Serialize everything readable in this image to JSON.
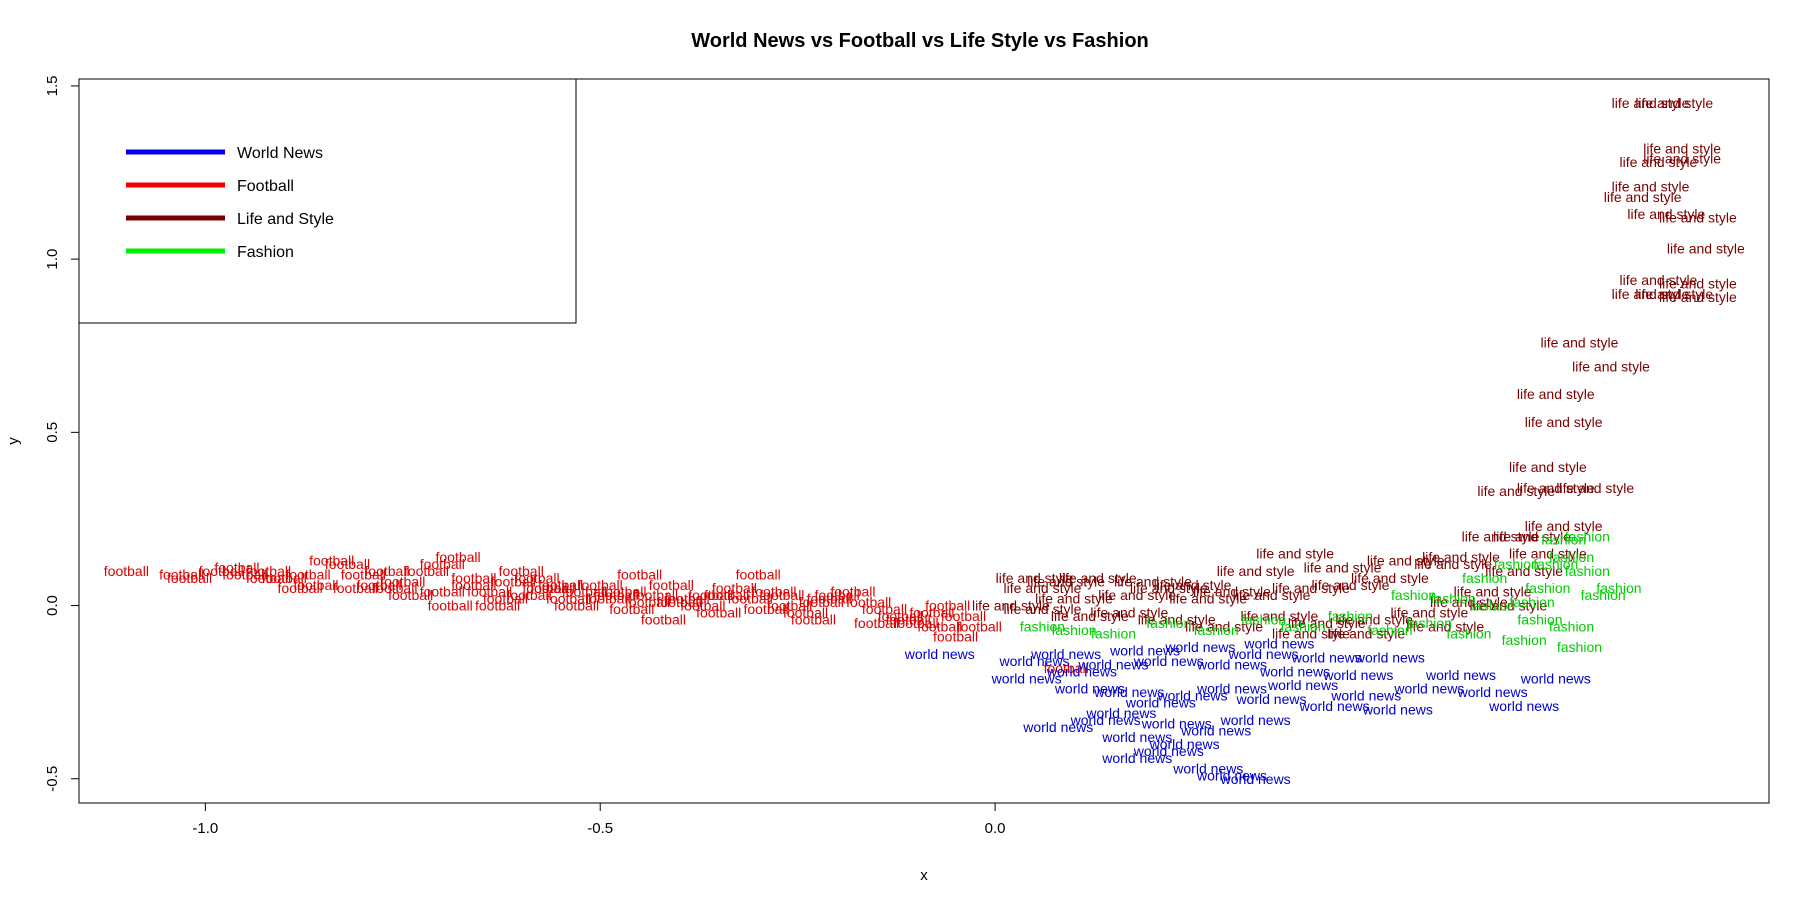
{
  "chart_data": {
    "type": "scatter",
    "title": "World News vs Football vs Life Style vs Fashion",
    "xlabel": "x",
    "ylabel": "y",
    "xlim": [
      -1.16,
      0.98
    ],
    "ylim": [
      -0.57,
      1.52
    ],
    "x_ticks": [
      -1.0,
      -0.5,
      0.0
    ],
    "x_tick_labels": [
      "-1.0",
      "-0.5",
      "0.0"
    ],
    "y_ticks": [
      -0.5,
      0.0,
      0.5,
      1.0,
      1.5
    ],
    "y_tick_labels": [
      "-0.5",
      "0.0",
      "0.5",
      "1.0",
      "1.5"
    ],
    "legend": {
      "placement": "top-left",
      "entries": [
        {
          "label": "World News",
          "color": "#0000ee"
        },
        {
          "label": "Football",
          "color": "#ee0000"
        },
        {
          "label": "Life and Style",
          "color": "#7a0000"
        },
        {
          "label": "Fashion",
          "color": "#00ee00"
        }
      ]
    },
    "series": [
      {
        "label": "football",
        "color": "#dd0000",
        "points": [
          [
            -1.1,
            0.1
          ],
          [
            -1.03,
            0.09
          ],
          [
            -1.02,
            0.08
          ],
          [
            -0.98,
            0.1
          ],
          [
            -0.96,
            0.11
          ],
          [
            -0.92,
            0.1
          ],
          [
            -0.9,
            0.08
          ],
          [
            -0.87,
            0.09
          ],
          [
            -0.84,
            0.13
          ],
          [
            -0.82,
            0.12
          ],
          [
            -0.8,
            0.09
          ],
          [
            -0.78,
            0.06
          ],
          [
            -0.76,
            0.05
          ],
          [
            -0.74,
            0.03
          ],
          [
            -0.72,
            0.1
          ],
          [
            -0.7,
            0.12
          ],
          [
            -0.68,
            0.14
          ],
          [
            -0.66,
            0.06
          ],
          [
            -0.64,
            0.04
          ],
          [
            -0.62,
            0.02
          ],
          [
            -0.61,
            0.07
          ],
          [
            -0.6,
            0.1
          ],
          [
            -0.58,
            0.08
          ],
          [
            -0.56,
            0.05
          ],
          [
            -0.54,
            0.02
          ],
          [
            -0.52,
            0.04
          ],
          [
            -0.5,
            0.06
          ],
          [
            -0.48,
            0.03
          ],
          [
            -0.46,
            -0.01
          ],
          [
            -0.45,
            0.09
          ],
          [
            -0.43,
            0.03
          ],
          [
            -0.41,
            0.06
          ],
          [
            -0.39,
            0.02
          ],
          [
            -0.37,
            0.0
          ],
          [
            -0.35,
            -0.02
          ],
          [
            -0.33,
            0.05
          ],
          [
            -0.31,
            0.02
          ],
          [
            -0.3,
            0.09
          ],
          [
            -0.28,
            0.04
          ],
          [
            -0.26,
            0.0
          ],
          [
            -0.24,
            -0.02
          ],
          [
            -0.22,
            0.01
          ],
          [
            -0.2,
            0.03
          ],
          [
            -0.18,
            0.04
          ],
          [
            -0.16,
            0.01
          ],
          [
            -0.14,
            -0.01
          ],
          [
            -0.12,
            -0.03
          ],
          [
            -0.1,
            -0.05
          ],
          [
            -0.08,
            -0.02
          ],
          [
            -0.06,
            0.0
          ],
          [
            -0.05,
            -0.09
          ],
          [
            -0.04,
            -0.03
          ],
          [
            -0.02,
            -0.06
          ],
          [
            -0.92,
            0.08
          ],
          [
            -0.86,
            0.06
          ],
          [
            -0.77,
            0.1
          ],
          [
            -0.69,
            0.0
          ],
          [
            -0.66,
            0.08
          ],
          [
            -0.57,
            0.05
          ],
          [
            -0.53,
            0.0
          ],
          [
            -0.49,
            0.02
          ],
          [
            -0.44,
            0.01
          ],
          [
            -0.42,
            -0.04
          ],
          [
            -0.34,
            0.03
          ],
          [
            -0.29,
            -0.01
          ],
          [
            -0.21,
            0.02
          ],
          [
            -0.95,
            0.09
          ],
          [
            -0.88,
            0.05
          ],
          [
            -0.81,
            0.05
          ],
          [
            -0.75,
            0.07
          ],
          [
            -0.7,
            0.04
          ],
          [
            -0.63,
            0.0
          ],
          [
            -0.59,
            0.03
          ],
          [
            -0.55,
            0.06
          ],
          [
            -0.47,
            0.04
          ],
          [
            -0.4,
            0.01
          ],
          [
            -0.36,
            0.03
          ],
          [
            -0.27,
            0.03
          ],
          [
            -0.23,
            -0.04
          ],
          [
            -0.15,
            -0.05
          ],
          [
            -0.11,
            -0.04
          ],
          [
            -0.07,
            -0.06
          ],
          [
            0.09,
            -0.18
          ]
        ]
      },
      {
        "label": "life and style",
        "color": "#7a0000",
        "points": [
          [
            0.83,
            1.45
          ],
          [
            0.86,
            1.45
          ],
          [
            0.87,
            1.32
          ],
          [
            0.84,
            1.28
          ],
          [
            0.87,
            1.29
          ],
          [
            0.83,
            1.21
          ],
          [
            0.82,
            1.18
          ],
          [
            0.85,
            1.13
          ],
          [
            0.89,
            1.12
          ],
          [
            0.9,
            1.03
          ],
          [
            0.84,
            0.94
          ],
          [
            0.89,
            0.93
          ],
          [
            0.83,
            0.9
          ],
          [
            0.86,
            0.9
          ],
          [
            0.89,
            0.89
          ],
          [
            0.74,
            0.76
          ],
          [
            0.78,
            0.69
          ],
          [
            0.71,
            0.61
          ],
          [
            0.72,
            0.53
          ],
          [
            0.7,
            0.4
          ],
          [
            0.76,
            0.34
          ],
          [
            0.66,
            0.33
          ],
          [
            0.71,
            0.34
          ],
          [
            0.68,
            0.2
          ],
          [
            0.72,
            0.23
          ],
          [
            0.64,
            0.2
          ],
          [
            0.59,
            0.14
          ],
          [
            0.7,
            0.15
          ],
          [
            0.05,
            0.08
          ],
          [
            0.09,
            0.07
          ],
          [
            0.13,
            0.08
          ],
          [
            0.2,
            0.07
          ],
          [
            0.25,
            0.06
          ],
          [
            0.3,
            0.04
          ],
          [
            0.33,
            0.1
          ],
          [
            0.06,
            0.05
          ],
          [
            0.1,
            0.02
          ],
          [
            0.18,
            0.03
          ],
          [
            0.22,
            0.05
          ],
          [
            0.27,
            0.02
          ],
          [
            0.35,
            0.03
          ],
          [
            0.4,
            0.05
          ],
          [
            0.45,
            0.06
          ],
          [
            0.5,
            0.08
          ],
          [
            0.02,
            0.0
          ],
          [
            0.06,
            -0.01
          ],
          [
            0.12,
            -0.03
          ],
          [
            0.17,
            -0.02
          ],
          [
            0.23,
            -0.04
          ],
          [
            0.29,
            -0.06
          ],
          [
            0.36,
            -0.03
          ],
          [
            0.42,
            -0.05
          ],
          [
            0.48,
            -0.04
          ],
          [
            0.55,
            -0.02
          ],
          [
            0.6,
            0.01
          ],
          [
            0.63,
            0.04
          ],
          [
            0.67,
            0.1
          ],
          [
            0.58,
            0.12
          ],
          [
            0.52,
            0.13
          ],
          [
            0.38,
            0.15
          ],
          [
            0.44,
            0.11
          ],
          [
            0.65,
            0.0
          ],
          [
            0.57,
            -0.06
          ],
          [
            0.47,
            -0.08
          ],
          [
            0.4,
            -0.08
          ]
        ]
      },
      {
        "label": "fashion",
        "color": "#00cc00",
        "points": [
          [
            0.75,
            0.2
          ],
          [
            0.72,
            0.19
          ],
          [
            0.73,
            0.14
          ],
          [
            0.71,
            0.12
          ],
          [
            0.75,
            0.1
          ],
          [
            0.79,
            0.05
          ],
          [
            0.77,
            0.03
          ],
          [
            0.7,
            0.05
          ],
          [
            0.68,
            0.01
          ],
          [
            0.63,
            0.0
          ],
          [
            0.58,
            0.02
          ],
          [
            0.53,
            0.03
          ],
          [
            0.69,
            -0.04
          ],
          [
            0.73,
            -0.06
          ],
          [
            0.74,
            -0.12
          ],
          [
            0.67,
            -0.1
          ],
          [
            0.6,
            -0.08
          ],
          [
            0.55,
            -0.05
          ],
          [
            0.5,
            -0.07
          ],
          [
            0.45,
            -0.03
          ],
          [
            0.39,
            -0.06
          ],
          [
            0.34,
            -0.04
          ],
          [
            0.28,
            -0.07
          ],
          [
            0.22,
            -0.05
          ],
          [
            0.15,
            -0.08
          ],
          [
            0.1,
            -0.07
          ],
          [
            0.06,
            -0.06
          ],
          [
            0.62,
            0.08
          ],
          [
            0.66,
            0.12
          ]
        ]
      },
      {
        "label": "world news",
        "color": "#0000cc",
        "points": [
          [
            -0.07,
            -0.14
          ],
          [
            0.05,
            -0.16
          ],
          [
            0.04,
            -0.21
          ],
          [
            0.09,
            -0.14
          ],
          [
            0.11,
            -0.19
          ],
          [
            0.15,
            -0.17
          ],
          [
            0.19,
            -0.13
          ],
          [
            0.22,
            -0.16
          ],
          [
            0.26,
            -0.12
          ],
          [
            0.3,
            -0.17
          ],
          [
            0.34,
            -0.14
          ],
          [
            0.38,
            -0.19
          ],
          [
            0.42,
            -0.15
          ],
          [
            0.46,
            -0.2
          ],
          [
            0.5,
            -0.15
          ],
          [
            0.12,
            -0.24
          ],
          [
            0.17,
            -0.25
          ],
          [
            0.21,
            -0.28
          ],
          [
            0.25,
            -0.26
          ],
          [
            0.3,
            -0.24
          ],
          [
            0.35,
            -0.27
          ],
          [
            0.39,
            -0.23
          ],
          [
            0.43,
            -0.29
          ],
          [
            0.47,
            -0.26
          ],
          [
            0.51,
            -0.3
          ],
          [
            0.55,
            -0.24
          ],
          [
            0.59,
            -0.2
          ],
          [
            0.63,
            -0.25
          ],
          [
            0.67,
            -0.29
          ],
          [
            0.71,
            -0.21
          ],
          [
            0.08,
            -0.35
          ],
          [
            0.14,
            -0.33
          ],
          [
            0.18,
            -0.38
          ],
          [
            0.23,
            -0.34
          ],
          [
            0.28,
            -0.36
          ],
          [
            0.24,
            -0.4
          ],
          [
            0.33,
            -0.33
          ],
          [
            0.22,
            -0.42
          ],
          [
            0.27,
            -0.47
          ],
          [
            0.3,
            -0.49
          ],
          [
            0.33,
            -0.5
          ],
          [
            0.18,
            -0.44
          ],
          [
            0.16,
            -0.31
          ],
          [
            0.36,
            -0.11
          ]
        ]
      }
    ]
  }
}
